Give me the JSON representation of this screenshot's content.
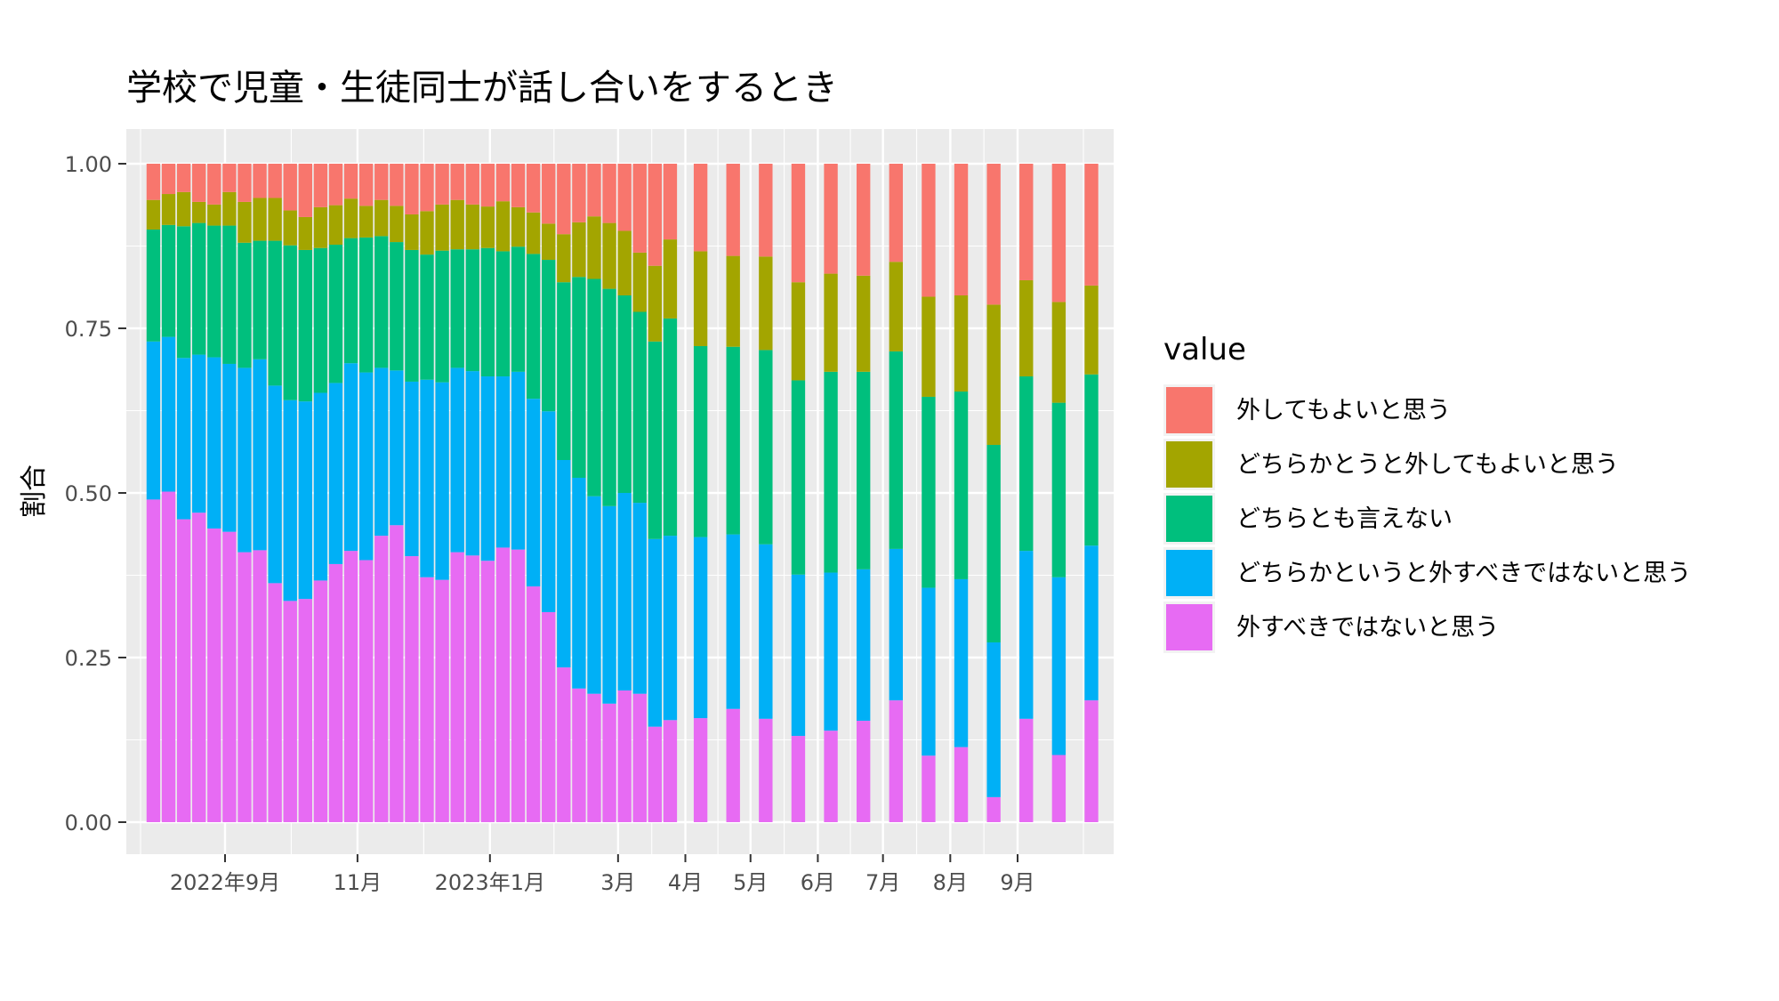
{
  "chart_data": {
    "type": "bar",
    "stacked": true,
    "title": "学校で児童・生徒同士が話し合いをするとき",
    "xlabel": "",
    "ylabel": "割合",
    "ylim": [
      0,
      1
    ],
    "y_ticks": [
      "0.00",
      "0.25",
      "0.50",
      "0.75",
      "1.00"
    ],
    "y_tick_values": [
      0,
      0.25,
      0.5,
      0.75,
      1
    ],
    "x_tick_labels": [
      {
        "label": "2022年9月",
        "date": "2022-09-01"
      },
      {
        "label": "11月",
        "date": "2022-11-01"
      },
      {
        "label": "2023年1月",
        "date": "2023-01-01"
      },
      {
        "label": "3月",
        "date": "2023-03-01"
      },
      {
        "label": "4月",
        "date": "2023-04-01"
      },
      {
        "label": "5月",
        "date": "2023-05-01"
      },
      {
        "label": "6月",
        "date": "2023-06-01"
      },
      {
        "label": "7月",
        "date": "2023-07-01"
      },
      {
        "label": "8月",
        "date": "2023-08-01"
      },
      {
        "label": "9月",
        "date": "2023-09-01"
      }
    ],
    "grid": true,
    "legend": {
      "title": "value",
      "position": "right"
    },
    "x_dates": [
      "2022-07-30",
      "2022-08-06",
      "2022-08-13",
      "2022-08-20",
      "2022-08-27",
      "2022-09-03",
      "2022-09-10",
      "2022-09-17",
      "2022-09-24",
      "2022-10-01",
      "2022-10-08",
      "2022-10-15",
      "2022-10-22",
      "2022-10-29",
      "2022-11-05",
      "2022-11-12",
      "2022-11-19",
      "2022-11-26",
      "2022-12-03",
      "2022-12-10",
      "2022-12-17",
      "2022-12-24",
      "2022-12-31",
      "2023-01-07",
      "2023-01-14",
      "2023-01-21",
      "2023-01-28",
      "2023-02-04",
      "2023-02-11",
      "2023-02-18",
      "2023-02-25",
      "2023-03-04",
      "2023-03-11",
      "2023-03-18",
      "2023-03-25",
      "2023-04-08",
      "2023-04-23",
      "2023-05-08",
      "2023-05-23",
      "2023-06-07",
      "2023-06-22",
      "2023-07-07",
      "2023-07-22",
      "2023-08-06",
      "2023-08-21",
      "2023-09-05",
      "2023-09-20",
      "2023-10-05"
    ],
    "series": [
      {
        "name": "外してもよいと思う",
        "color": "#F8766D",
        "values": [
          0.055,
          0.046,
          0.043,
          0.058,
          0.062,
          0.043,
          0.058,
          0.052,
          0.052,
          0.071,
          0.081,
          0.066,
          0.063,
          0.053,
          0.064,
          0.055,
          0.064,
          0.077,
          0.072,
          0.062,
          0.055,
          0.062,
          0.065,
          0.057,
          0.066,
          0.074,
          0.091,
          0.107,
          0.089,
          0.08,
          0.09,
          0.102,
          0.135,
          0.155,
          0.115,
          0.133,
          0.14,
          0.141,
          0.18,
          0.167,
          0.17,
          0.149,
          0.202,
          0.2,
          0.214,
          0.177,
          0.21,
          0.185
        ]
      },
      {
        "name": "どちらかとうと外してもよいと思う",
        "color": "#A3A500",
        "values": [
          0.045,
          0.047,
          0.052,
          0.032,
          0.032,
          0.051,
          0.062,
          0.065,
          0.065,
          0.053,
          0.05,
          0.062,
          0.06,
          0.06,
          0.048,
          0.055,
          0.055,
          0.054,
          0.066,
          0.07,
          0.075,
          0.068,
          0.063,
          0.076,
          0.06,
          0.063,
          0.055,
          0.073,
          0.083,
          0.095,
          0.1,
          0.098,
          0.09,
          0.115,
          0.12,
          0.144,
          0.138,
          0.142,
          0.149,
          0.149,
          0.146,
          0.136,
          0.152,
          0.146,
          0.213,
          0.146,
          0.153,
          0.135
        ]
      },
      {
        "name": "どちらとも言えない",
        "color": "#00BF7D",
        "values": [
          0.17,
          0.17,
          0.2,
          0.2,
          0.2,
          0.21,
          0.19,
          0.18,
          0.22,
          0.235,
          0.23,
          0.22,
          0.21,
          0.19,
          0.205,
          0.2,
          0.195,
          0.2,
          0.19,
          0.2,
          0.18,
          0.185,
          0.195,
          0.19,
          0.19,
          0.22,
          0.23,
          0.27,
          0.305,
          0.33,
          0.33,
          0.3,
          0.29,
          0.3,
          0.33,
          0.29,
          0.285,
          0.295,
          0.295,
          0.305,
          0.3,
          0.3,
          0.29,
          0.285,
          0.3,
          0.265,
          0.265,
          0.26
        ]
      },
      {
        "name": "どちらかというと外すべきではないと思う",
        "color": "#00B0F6",
        "values": [
          0.24,
          0.235,
          0.245,
          0.24,
          0.26,
          0.255,
          0.28,
          0.29,
          0.3,
          0.305,
          0.3,
          0.285,
          0.275,
          0.285,
          0.285,
          0.255,
          0.235,
          0.265,
          0.3,
          0.3,
          0.28,
          0.28,
          0.28,
          0.26,
          0.27,
          0.285,
          0.305,
          0.315,
          0.32,
          0.3,
          0.3,
          0.3,
          0.29,
          0.285,
          0.28,
          0.275,
          0.265,
          0.265,
          0.245,
          0.24,
          0.23,
          0.23,
          0.255,
          0.255,
          0.235,
          0.255,
          0.27,
          0.235
        ]
      },
      {
        "name": "外すべきではないと思う",
        "color": "#E76BF3",
        "values": [
          0.49,
          0.502,
          0.46,
          0.47,
          0.446,
          0.441,
          0.41,
          0.413,
          0.363,
          0.336,
          0.339,
          0.367,
          0.392,
          0.412,
          0.398,
          0.435,
          0.451,
          0.404,
          0.372,
          0.368,
          0.41,
          0.405,
          0.397,
          0.417,
          0.414,
          0.358,
          0.319,
          0.235,
          0.203,
          0.195,
          0.18,
          0.2,
          0.195,
          0.145,
          0.155,
          0.158,
          0.172,
          0.157,
          0.131,
          0.139,
          0.154,
          0.185,
          0.101,
          0.114,
          0.038,
          0.157,
          0.102,
          0.185
        ]
      }
    ]
  }
}
